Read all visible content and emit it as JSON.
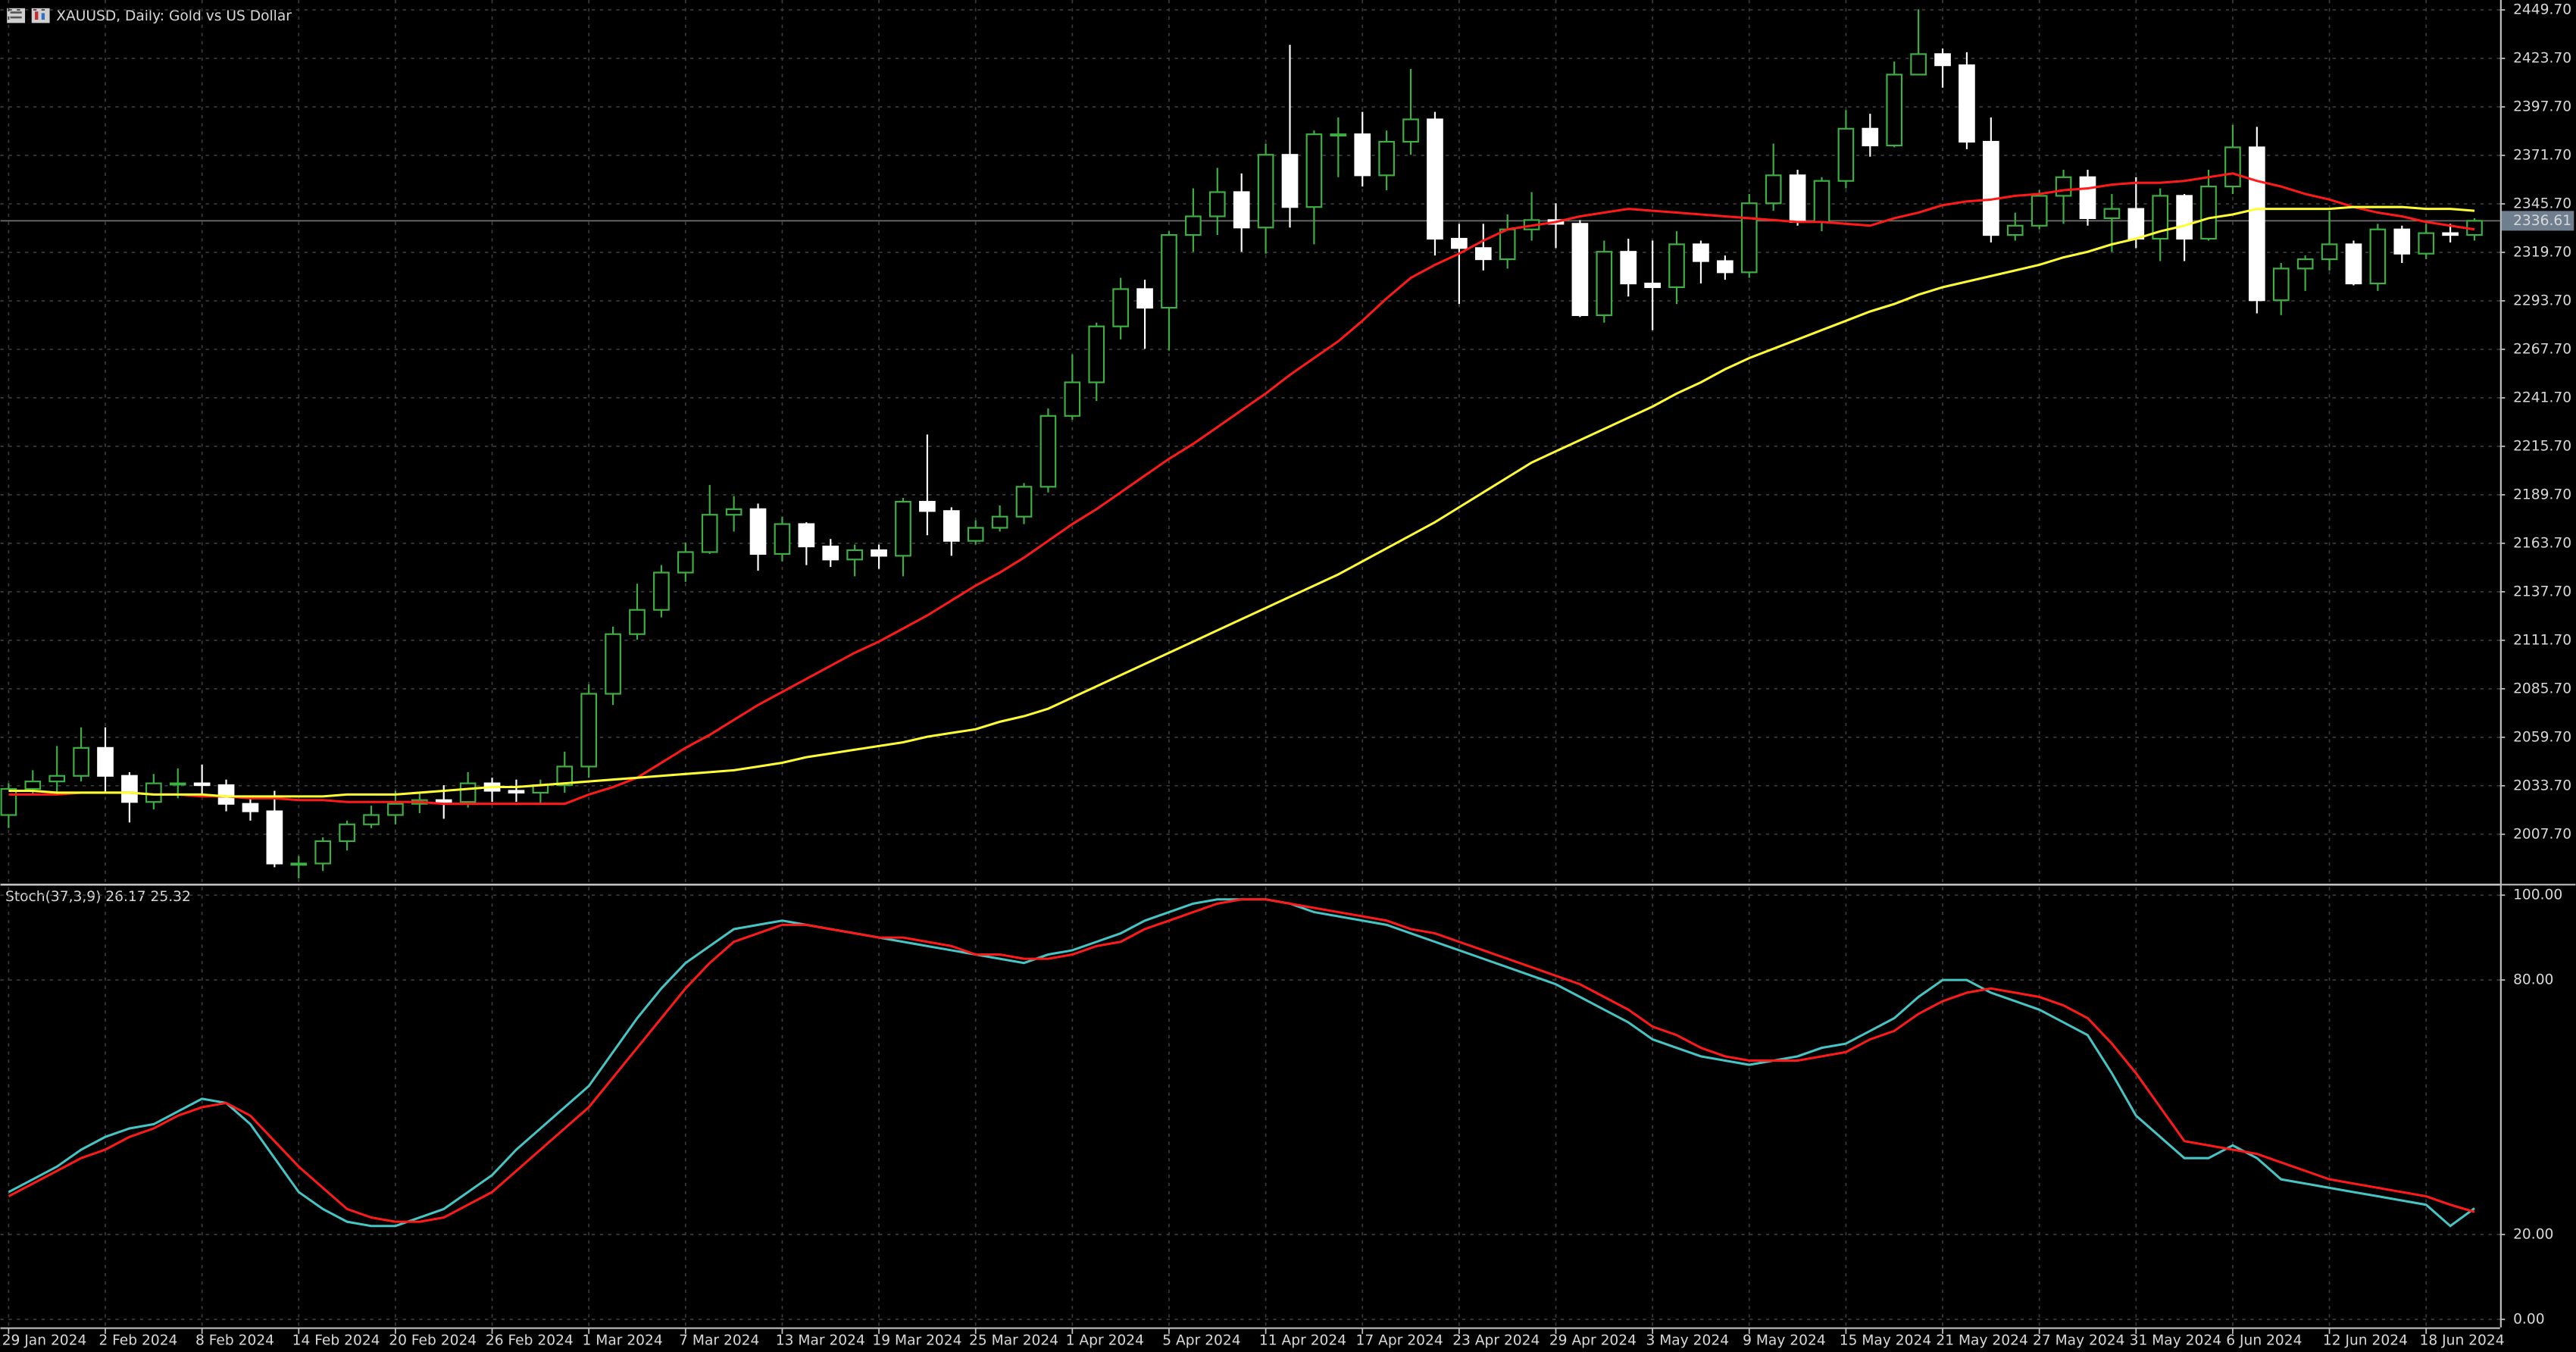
{
  "chart_data": [
    {
      "type": "candlestick",
      "title": "XAUUSD, Daily:  Gold vs US Dollar",
      "up_color": "#3cb043",
      "down_color": "#ffffff",
      "categories": [
        "29 Jan 2024",
        null,
        null,
        null,
        "2 Feb 2024",
        null,
        null,
        null,
        "8 Feb 2024",
        null,
        null,
        null,
        "14 Feb 2024",
        null,
        null,
        null,
        "20 Feb 2024",
        null,
        null,
        null,
        "26 Feb 2024",
        null,
        null,
        null,
        "1 Mar 2024",
        null,
        null,
        null,
        "7 Mar 2024",
        null,
        null,
        null,
        "13 Mar 2024",
        null,
        null,
        null,
        "19 Mar 2024",
        null,
        null,
        null,
        "25 Mar 2024",
        null,
        null,
        null,
        "1 Apr 2024",
        null,
        null,
        null,
        "5 Apr 2024",
        null,
        null,
        null,
        "11 Apr 2024",
        null,
        null,
        null,
        "17 Apr 2024",
        null,
        null,
        null,
        "23 Apr 2024",
        null,
        null,
        null,
        "29 Apr 2024",
        null,
        null,
        null,
        "3 May 2024",
        null,
        null,
        null,
        "9 May 2024",
        null,
        null,
        null,
        "15 May 2024",
        null,
        null,
        null,
        "21 May 2024",
        null,
        null,
        null,
        "27 May 2024",
        null,
        null,
        null,
        "31 May 2024",
        null,
        null,
        null,
        "6 Jun 2024",
        null,
        null,
        null,
        "12 Jun 2024",
        null,
        null,
        null,
        "18 Jun 2024",
        null,
        null
      ],
      "open": [
        2018,
        2032,
        2036,
        2039,
        2054,
        2039,
        2025,
        2035,
        2035,
        2034,
        2024,
        2020,
        1992,
        1992,
        2004,
        2013,
        2018,
        2024,
        2026,
        2025,
        2035,
        2031,
        2030,
        2034,
        2044,
        2083,
        2115,
        2128,
        2148,
        2159,
        2179,
        2182,
        2158,
        2174,
        2162,
        2155,
        2160,
        2157,
        2186,
        2181,
        2165,
        2172,
        2178,
        2194,
        2232,
        2250,
        2280,
        2300,
        2290,
        2329,
        2339,
        2352,
        2333,
        2372,
        2344,
        2383,
        2383,
        2361,
        2379,
        2391,
        2327,
        2322,
        2316,
        2332,
        2337,
        2335,
        2286,
        2320,
        2303,
        2301,
        2324,
        2315,
        2309,
        2346,
        2361,
        2336,
        2358,
        2386,
        2377,
        2415,
        2426,
        2420,
        2379,
        2329,
        2334,
        2350,
        2360,
        2338,
        2343,
        2327,
        2350,
        2327,
        2355,
        2376,
        2294,
        2311,
        2316,
        2324,
        2303,
        2332,
        2319,
        2330,
        2329
      ],
      "high": [
        2035,
        2042,
        2055,
        2065,
        2065,
        2041,
        2040,
        2043,
        2045,
        2037,
        2028,
        2031,
        1996,
        2006,
        2015,
        2023,
        2031,
        2030,
        2034,
        2041,
        2038,
        2037,
        2037,
        2052,
        2088,
        2119,
        2142,
        2152,
        2164,
        2195,
        2189,
        2185,
        2178,
        2175,
        2166,
        2163,
        2163,
        2188,
        2222,
        2183,
        2176,
        2184,
        2196,
        2236,
        2265,
        2282,
        2306,
        2305,
        2331,
        2354,
        2365,
        2362,
        2378,
        2431,
        2385,
        2392,
        2395,
        2385,
        2418,
        2395,
        2335,
        2335,
        2340,
        2352,
        2346,
        2337,
        2326,
        2327,
        2326,
        2331,
        2326,
        2318,
        2351,
        2378,
        2364,
        2360,
        2396,
        2394,
        2422,
        2450,
        2429,
        2427,
        2392,
        2341,
        2353,
        2364,
        2364,
        2351,
        2360,
        2354,
        2351,
        2364,
        2388,
        2387,
        2314,
        2318,
        2342,
        2326,
        2335,
        2334,
        2335,
        2335,
        2338
      ],
      "low": [
        2011,
        2029,
        2030,
        2036,
        2030,
        2014,
        2021,
        2027,
        2028,
        2020,
        2015,
        1990,
        1984,
        1988,
        1999,
        2011,
        2013,
        2019,
        2016,
        2022,
        2025,
        2025,
        2024,
        2030,
        2038,
        2077,
        2112,
        2124,
        2143,
        2158,
        2170,
        2149,
        2154,
        2152,
        2151,
        2146,
        2150,
        2146,
        2168,
        2157,
        2163,
        2170,
        2174,
        2191,
        2230,
        2240,
        2273,
        2268,
        2267,
        2320,
        2329,
        2320,
        2319,
        2333,
        2324,
        2360,
        2355,
        2353,
        2372,
        2318,
        2292,
        2310,
        2311,
        2326,
        2322,
        2285,
        2282,
        2296,
        2278,
        2292,
        2303,
        2305,
        2306,
        2342,
        2334,
        2331,
        2354,
        2371,
        2376,
        2415,
        2408,
        2375,
        2325,
        2326,
        2332,
        2335,
        2334,
        2320,
        2322,
        2315,
        2315,
        2326,
        2351,
        2287,
        2286,
        2299,
        2310,
        2302,
        2299,
        2314,
        2316,
        2325,
        2326
      ],
      "close": [
        2032,
        2036,
        2039,
        2054,
        2039,
        2025,
        2035,
        2035,
        2034,
        2024,
        2020,
        1992,
        1992,
        2004,
        2013,
        2018,
        2024,
        2026,
        2025,
        2035,
        2031,
        2030,
        2034,
        2044,
        2083,
        2115,
        2128,
        2148,
        2159,
        2179,
        2182,
        2158,
        2174,
        2162,
        2155,
        2160,
        2157,
        2186,
        2181,
        2165,
        2172,
        2178,
        2194,
        2232,
        2250,
        2280,
        2300,
        2290,
        2329,
        2339,
        2352,
        2333,
        2372,
        2344,
        2383,
        2383,
        2361,
        2379,
        2391,
        2327,
        2322,
        2316,
        2332,
        2337,
        2335,
        2286,
        2320,
        2303,
        2301,
        2324,
        2315,
        2309,
        2346,
        2361,
        2336,
        2358,
        2386,
        2377,
        2415,
        2426,
        2420,
        2379,
        2329,
        2334,
        2350,
        2360,
        2338,
        2343,
        2327,
        2350,
        2327,
        2355,
        2376,
        2294,
        2311,
        2316,
        2324,
        2303,
        2332,
        2319,
        2330,
        2329,
        2336.61
      ],
      "series": [
        {
          "color": "#ff1a1a",
          "values": [
            2029,
            2029,
            2029,
            2030,
            2030,
            2030,
            2029,
            2029,
            2028,
            2028,
            2027,
            2027,
            2026,
            2026,
            2025,
            2025,
            2025,
            2025,
            2024,
            2024,
            2024,
            2024,
            2024,
            2024,
            2029,
            2033,
            2038,
            2046,
            2054,
            2061,
            2069,
            2077,
            2084,
            2091,
            2098,
            2105,
            2111,
            2118,
            2125,
            2133,
            2141,
            2148,
            2156,
            2165,
            2174,
            2182,
            2191,
            2200,
            2209,
            2217,
            2226,
            2235,
            2244,
            2254,
            2263,
            2272,
            2283,
            2295,
            2306,
            2313,
            2319,
            2326,
            2332,
            2334,
            2336,
            2339,
            2341,
            2343,
            2342,
            2341,
            2340,
            2339,
            2338,
            2337,
            2336,
            2336,
            2335,
            2334,
            2338,
            2341,
            2345,
            2347,
            2348,
            2350,
            2351,
            2353,
            2354,
            2356,
            2357,
            2357,
            2358,
            2360,
            2362,
            2358,
            2355,
            2351,
            2348,
            2344,
            2341,
            2339,
            2336,
            2334,
            2332
          ]
        },
        {
          "color": "#ffff33",
          "values": [
            2031,
            2031,
            2030,
            2030,
            2030,
            2030,
            2029,
            2029,
            2029,
            2028,
            2028,
            2028,
            2028,
            2028,
            2029,
            2029,
            2029,
            2030,
            2031,
            2032,
            2033,
            2033,
            2034,
            2035,
            2036,
            2037,
            2038,
            2039,
            2040,
            2041,
            2042,
            2044,
            2046,
            2049,
            2051,
            2053,
            2055,
            2057,
            2060,
            2062,
            2064,
            2068,
            2071,
            2075,
            2081,
            2087,
            2093,
            2099,
            2105,
            2111,
            2117,
            2123,
            2129,
            2135,
            2141,
            2147,
            2154,
            2161,
            2168,
            2175,
            2183,
            2191,
            2199,
            2207,
            2213,
            2219,
            2225,
            2231,
            2237,
            2244,
            2250,
            2257,
            2263,
            2268,
            2273,
            2278,
            2283,
            2288,
            2292,
            2297,
            2301,
            2304,
            2307,
            2310,
            2313,
            2317,
            2320,
            2324,
            2327,
            2331,
            2334,
            2338,
            2340,
            2343,
            2343,
            2343,
            2343,
            2344,
            2344,
            2344,
            2343,
            2343,
            2342
          ]
        }
      ],
      "last_price": 2336.61,
      "ylim": [
        1982,
        2455
      ],
      "yticks": [
        {
          "value": 2449.7,
          "label": "2449.70"
        },
        {
          "value": 2423.7,
          "label": "2423.70"
        },
        {
          "value": 2397.7,
          "label": "2397.70"
        },
        {
          "value": 2371.7,
          "label": "2371.70"
        },
        {
          "value": 2345.7,
          "label": "2345.70"
        },
        {
          "value": 2319.7,
          "label": "2319.70"
        },
        {
          "value": 2293.7,
          "label": "2293.70"
        },
        {
          "value": 2267.7,
          "label": "2267.70"
        },
        {
          "value": 2241.7,
          "label": "2241.70"
        },
        {
          "value": 2215.7,
          "label": "2215.70"
        },
        {
          "value": 2189.7,
          "label": "2189.70"
        },
        {
          "value": 2163.7,
          "label": "2163.70"
        },
        {
          "value": 2137.7,
          "label": "2137.70"
        },
        {
          "value": 2111.7,
          "label": "2111.70"
        },
        {
          "value": 2085.7,
          "label": "2085.70"
        },
        {
          "value": 2059.7,
          "label": "2059.70"
        },
        {
          "value": 2033.7,
          "label": "2033.70"
        },
        {
          "value": 2007.7,
          "label": "2007.70"
        }
      ],
      "grid": true
    },
    {
      "type": "line",
      "title": "Stoch(37,3,9) 26.17 25.32",
      "series": [
        {
          "color": "#47c4c4",
          "values": [
            30,
            33,
            36,
            40,
            43,
            45,
            46,
            49,
            52,
            51,
            46,
            38,
            30,
            26,
            23,
            22,
            22,
            24,
            26,
            30,
            34,
            40,
            45,
            50,
            55,
            63,
            71,
            78,
            84,
            88,
            92,
            93,
            94,
            93,
            92,
            91,
            90,
            89,
            88,
            87,
            86,
            85,
            84,
            86,
            87,
            89,
            91,
            94,
            96,
            98,
            99,
            99,
            99,
            98,
            96,
            95,
            94,
            93,
            91,
            89,
            87,
            85,
            83,
            81,
            79,
            76,
            73,
            70,
            66,
            64,
            62,
            61,
            60,
            61,
            62,
            64,
            65,
            68,
            71,
            76,
            80,
            80,
            77,
            75,
            73,
            70,
            67,
            58,
            48,
            43,
            38,
            38,
            41,
            38,
            33,
            32,
            31,
            30,
            29,
            28,
            27,
            22,
            26.17
          ]
        },
        {
          "color": "#ff1a1a",
          "values": [
            29,
            32,
            35,
            38,
            40,
            43,
            45,
            48,
            50,
            51,
            48,
            42,
            36,
            31,
            26,
            24,
            23,
            23,
            24,
            27,
            30,
            35,
            40,
            45,
            50,
            57,
            64,
            71,
            78,
            84,
            89,
            91,
            93,
            93,
            92,
            91,
            90,
            90,
            89,
            88,
            86,
            86,
            85,
            85,
            86,
            88,
            89,
            92,
            94,
            96,
            98,
            99,
            99,
            98,
            97,
            96,
            95,
            94,
            92,
            91,
            89,
            87,
            85,
            83,
            81,
            79,
            76,
            73,
            69,
            67,
            64,
            62,
            61,
            61,
            61,
            62,
            63,
            66,
            68,
            72,
            75,
            77,
            78,
            77,
            76,
            74,
            71,
            65,
            58,
            50,
            42,
            41,
            40,
            39,
            37,
            35,
            33,
            32,
            31,
            30,
            29,
            27,
            25.32
          ]
        }
      ],
      "ylim": [
        -1.9,
        101.9
      ],
      "yticks": [
        {
          "value": 100,
          "label": "100.00"
        },
        {
          "value": 80,
          "label": "80.00"
        },
        {
          "value": 20,
          "label": "20.00"
        },
        {
          "value": 0,
          "label": "0.00"
        }
      ],
      "grid": true
    }
  ]
}
